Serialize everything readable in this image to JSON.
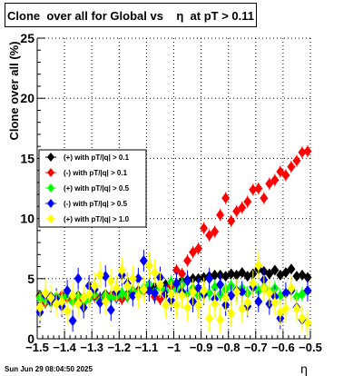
{
  "title": "Clone  over all for Global vs    η  at pT > 0.11",
  "datestamp": "Sun Jun 29 08:04:50 2025",
  "chart_data": {
    "type": "scatter",
    "title": "Clone  over all for Global vs    η  at pT > 0.11",
    "xlabel": "η",
    "ylabel": "Clone  over all (%)",
    "xlim": [
      -1.5,
      -0.5
    ],
    "ylim": [
      0,
      25
    ],
    "x_ticks": [
      -1.5,
      -1.4,
      -1.3,
      -1.2,
      -1.1,
      -1.0,
      -0.9,
      -0.8,
      -0.7,
      -0.6,
      -0.5
    ],
    "x_tick_labels": [
      "−1.5",
      "−1.4",
      "−1.3",
      "−1.2",
      "−1.1",
      "−1",
      "−0.9",
      "−0.8",
      "−0.7",
      "−0.6",
      "−0.5"
    ],
    "y_ticks": [
      0,
      5,
      10,
      15,
      20,
      25
    ],
    "y_tick_labels": [
      "0",
      "5",
      "10",
      "15",
      "20",
      "25"
    ],
    "grid": true,
    "legend_position": "left-middle",
    "series": [
      {
        "name": "(+) with pT/|q| > 0.1",
        "color": "#000000",
        "x": [
          -1.49,
          -1.47,
          -1.45,
          -1.43,
          -1.41,
          -1.39,
          -1.37,
          -1.35,
          -1.33,
          -1.31,
          -1.29,
          -1.27,
          -1.25,
          -1.23,
          -1.21,
          -1.19,
          -1.17,
          -1.15,
          -1.13,
          -1.11,
          -1.09,
          -1.07,
          -1.05,
          -1.03,
          -1.01,
          -0.99,
          -0.97,
          -0.95,
          -0.93,
          -0.91,
          -0.89,
          -0.87,
          -0.85,
          -0.83,
          -0.81,
          -0.79,
          -0.77,
          -0.75,
          -0.73,
          -0.71,
          -0.69,
          -0.67,
          -0.65,
          -0.63,
          -0.61,
          -0.59,
          -0.57,
          -0.55,
          -0.53,
          -0.51
        ],
        "y": [
          3.6,
          3.3,
          3.5,
          3.4,
          3.2,
          3.5,
          3.3,
          3.6,
          3.4,
          3.5,
          3.6,
          3.4,
          3.7,
          3.5,
          3.6,
          3.8,
          3.7,
          3.9,
          4.0,
          4.1,
          4.2,
          4.3,
          4.4,
          4.5,
          4.6,
          4.6,
          4.8,
          4.9,
          5.0,
          5.0,
          5.1,
          5.2,
          5.3,
          5.3,
          5.2,
          5.4,
          5.3,
          5.5,
          5.2,
          5.4,
          5.8,
          5.6,
          5.4,
          5.7,
          5.3,
          5.5,
          5.8,
          5.2,
          5.3,
          5.1
        ],
        "err": [
          0.4,
          0.4,
          0.4,
          0.4,
          0.4,
          0.4,
          0.4,
          0.4,
          0.4,
          0.4,
          0.4,
          0.4,
          0.4,
          0.4,
          0.4,
          0.4,
          0.4,
          0.4,
          0.4,
          0.4,
          0.4,
          0.4,
          0.4,
          0.4,
          0.4,
          0.4,
          0.4,
          0.4,
          0.4,
          0.4,
          0.4,
          0.4,
          0.4,
          0.4,
          0.4,
          0.4,
          0.4,
          0.4,
          0.4,
          0.4,
          0.4,
          0.4,
          0.4,
          0.4,
          0.4,
          0.4,
          0.4,
          0.4,
          0.4,
          0.4
        ]
      },
      {
        "name": "(-) with pT/|q| > 0.1",
        "color": "#ff0000",
        "x": [
          -1.49,
          -1.47,
          -1.45,
          -1.43,
          -1.41,
          -1.39,
          -1.37,
          -1.35,
          -1.33,
          -1.31,
          -1.29,
          -1.27,
          -1.25,
          -1.23,
          -1.21,
          -1.19,
          -1.17,
          -1.15,
          -1.13,
          -1.11,
          -1.09,
          -1.07,
          -1.05,
          -1.03,
          -1.01,
          -0.99,
          -0.97,
          -0.95,
          -0.93,
          -0.91,
          -0.89,
          -0.87,
          -0.85,
          -0.83,
          -0.81,
          -0.79,
          -0.77,
          -0.75,
          -0.73,
          -0.71,
          -0.69,
          -0.67,
          -0.65,
          -0.63,
          -0.61,
          -0.59,
          -0.57,
          -0.55,
          -0.53,
          -0.51
        ],
        "y": [
          3.5,
          3.0,
          3.3,
          3.2,
          3.6,
          3.4,
          3.5,
          3.2,
          3.4,
          3.3,
          3.5,
          3.4,
          3.3,
          3.6,
          3.4,
          3.3,
          3.5,
          3.7,
          3.9,
          4.0,
          4.0,
          3.5,
          3.3,
          3.8,
          4.4,
          5.7,
          5.4,
          6.5,
          7.2,
          7.5,
          9.2,
          8.6,
          8.9,
          10.3,
          11.7,
          9.8,
          10.6,
          10.9,
          11.4,
          12.4,
          12.5,
          11.7,
          12.9,
          13.2,
          13.9,
          13.6,
          14.3,
          14.8,
          15.5,
          15.6
        ],
        "err": [
          0.5,
          0.5,
          0.5,
          0.5,
          0.5,
          0.5,
          0.5,
          0.5,
          0.5,
          0.5,
          0.5,
          0.5,
          0.5,
          0.5,
          0.5,
          0.5,
          0.5,
          0.5,
          0.5,
          0.5,
          0.5,
          0.5,
          0.5,
          0.5,
          0.5,
          0.5,
          0.5,
          0.5,
          0.5,
          0.5,
          0.5,
          0.5,
          0.5,
          0.5,
          0.5,
          0.5,
          0.5,
          0.5,
          0.5,
          0.5,
          0.5,
          0.5,
          0.5,
          0.5,
          0.5,
          0.5,
          0.5,
          0.5,
          0.5,
          0.5
        ]
      },
      {
        "name": "(+) with pT/|q| > 0.5",
        "color": "#00ff00",
        "x": [
          -1.49,
          -1.47,
          -1.45,
          -1.43,
          -1.41,
          -1.39,
          -1.37,
          -1.35,
          -1.33,
          -1.31,
          -1.29,
          -1.27,
          -1.25,
          -1.23,
          -1.21,
          -1.19,
          -1.17,
          -1.15,
          -1.13,
          -1.11,
          -1.09,
          -1.07,
          -1.05,
          -1.03,
          -1.01,
          -0.99,
          -0.97,
          -0.95,
          -0.93,
          -0.91,
          -0.89,
          -0.87,
          -0.85,
          -0.83,
          -0.81,
          -0.79,
          -0.77,
          -0.75,
          -0.73,
          -0.71,
          -0.69,
          -0.67,
          -0.65,
          -0.63,
          -0.61,
          -0.59,
          -0.57,
          -0.55,
          -0.53,
          -0.51
        ],
        "y": [
          3.4,
          3.2,
          3.0,
          3.5,
          3.3,
          3.6,
          3.1,
          3.5,
          3.0,
          3.3,
          3.7,
          3.2,
          3.6,
          3.4,
          3.5,
          3.8,
          3.6,
          4.0,
          3.8,
          4.2,
          4.5,
          3.9,
          4.3,
          4.0,
          4.7,
          4.1,
          4.5,
          3.8,
          4.2,
          3.6,
          4.0,
          3.8,
          4.3,
          3.7,
          4.1,
          4.4,
          3.9,
          4.2,
          3.8,
          4.6,
          4.0,
          4.3,
          3.9,
          4.2,
          3.6,
          3.8,
          4.1,
          3.5,
          3.7,
          4.0
        ],
        "err": [
          0.6,
          0.6,
          0.6,
          0.6,
          0.6,
          0.6,
          0.6,
          0.6,
          0.6,
          0.6,
          0.6,
          0.6,
          0.6,
          0.6,
          0.6,
          0.6,
          0.6,
          0.6,
          0.6,
          0.6,
          0.6,
          0.6,
          0.6,
          0.6,
          0.6,
          0.6,
          0.6,
          0.6,
          0.6,
          0.6,
          0.6,
          0.6,
          0.6,
          0.6,
          0.6,
          0.6,
          0.6,
          0.6,
          0.6,
          0.6,
          0.6,
          0.6,
          0.6,
          0.6,
          0.6,
          0.6,
          0.6,
          0.6,
          0.6,
          0.6
        ]
      },
      {
        "name": "(-) with pT/|q| > 0.5",
        "color": "#0000ff",
        "x": [
          -1.49,
          -1.47,
          -1.45,
          -1.43,
          -1.41,
          -1.39,
          -1.37,
          -1.35,
          -1.33,
          -1.31,
          -1.29,
          -1.27,
          -1.25,
          -1.23,
          -1.21,
          -1.19,
          -1.17,
          -1.15,
          -1.13,
          -1.11,
          -1.09,
          -1.07,
          -1.05,
          -1.03,
          -1.01,
          -0.99,
          -0.97,
          -0.95,
          -0.93,
          -0.91,
          -0.89,
          -0.87,
          -0.85,
          -0.83,
          -0.81,
          -0.79,
          -0.77,
          -0.75,
          -0.73,
          -0.71,
          -0.69,
          -0.67,
          -0.65,
          -0.63,
          -0.61,
          -0.59,
          -0.57,
          -0.55,
          -0.53,
          -0.51
        ],
        "y": [
          2.2,
          3.6,
          3.1,
          3.3,
          2.7,
          4.0,
          1.5,
          5.0,
          2.6,
          4.4,
          4.1,
          3.0,
          5.2,
          2.4,
          3.9,
          5.3,
          4.6,
          3.6,
          5.0,
          6.5,
          4.0,
          3.8,
          5.1,
          3.7,
          3.2,
          4.6,
          3.9,
          4.8,
          3.1,
          4.2,
          3.7,
          5.0,
          3.3,
          4.5,
          2.8,
          3.6,
          4.0,
          3.9,
          2.7,
          4.3,
          3.1,
          4.9,
          2.9,
          3.5,
          1.7,
          3.8,
          4.0,
          2.6,
          1.6,
          4.0
        ],
        "err": [
          0.9,
          0.9,
          0.9,
          0.9,
          0.9,
          0.9,
          0.9,
          0.9,
          0.9,
          0.9,
          0.9,
          0.9,
          0.9,
          0.9,
          0.9,
          0.9,
          0.9,
          0.9,
          0.9,
          0.9,
          0.9,
          0.9,
          0.9,
          0.9,
          0.9,
          0.9,
          0.9,
          0.9,
          0.9,
          0.9,
          0.9,
          0.9,
          0.9,
          0.9,
          0.9,
          0.9,
          0.9,
          0.9,
          0.9,
          0.9,
          0.9,
          0.9,
          0.9,
          0.9,
          0.9,
          0.9,
          0.9,
          0.9,
          0.9,
          0.9
        ]
      },
      {
        "name": "(+) with pT/|q| > 1.0",
        "color": "#ffff00",
        "x": [
          -1.49,
          -1.47,
          -1.45,
          -1.43,
          -1.41,
          -1.39,
          -1.37,
          -1.35,
          -1.33,
          -1.31,
          -1.29,
          -1.27,
          -1.25,
          -1.23,
          -1.21,
          -1.19,
          -1.17,
          -1.15,
          -1.13,
          -1.11,
          -1.09,
          -1.07,
          -1.05,
          -1.03,
          -1.01,
          -0.99,
          -0.97,
          -0.95,
          -0.93,
          -0.91,
          -0.89,
          -0.87,
          -0.85,
          -0.83,
          -0.81,
          -0.79,
          -0.77,
          -0.75,
          -0.73,
          -0.71,
          -0.69,
          -0.67,
          -0.65,
          -0.63,
          -0.61,
          -0.59,
          -0.57,
          -0.55,
          -0.53,
          -0.51
        ],
        "y": [
          2.6,
          3.8,
          3.4,
          2.9,
          3.1,
          2.3,
          3.6,
          2.9,
          3.4,
          3.7,
          4.4,
          5.3,
          3.1,
          4.8,
          4.2,
          5.7,
          4.4,
          5.0,
          3.6,
          4.1,
          6.1,
          5.5,
          4.5,
          2.8,
          3.7,
          2.8,
          3.6,
          2.6,
          3.9,
          2.8,
          4.0,
          1.7,
          2.9,
          1.6,
          3.4,
          2.1,
          3.9,
          2.5,
          3.0,
          4.6,
          6.1,
          4.2,
          3.8,
          3.0,
          2.2,
          2.5,
          4.2,
          2.5,
          1.7,
          1.3
        ],
        "err": [
          1.1,
          1.1,
          1.1,
          1.1,
          1.1,
          1.1,
          1.1,
          1.1,
          1.1,
          1.1,
          1.1,
          1.1,
          1.1,
          1.1,
          1.1,
          1.1,
          1.1,
          1.1,
          1.1,
          1.1,
          1.1,
          1.1,
          1.1,
          1.1,
          1.1,
          1.1,
          1.1,
          1.1,
          1.1,
          1.1,
          1.1,
          1.1,
          1.1,
          1.1,
          1.1,
          1.1,
          1.1,
          1.1,
          1.1,
          1.1,
          1.1,
          1.1,
          1.1,
          1.1,
          1.1,
          1.1,
          1.1,
          1.1,
          1.1,
          1.1
        ]
      }
    ]
  }
}
